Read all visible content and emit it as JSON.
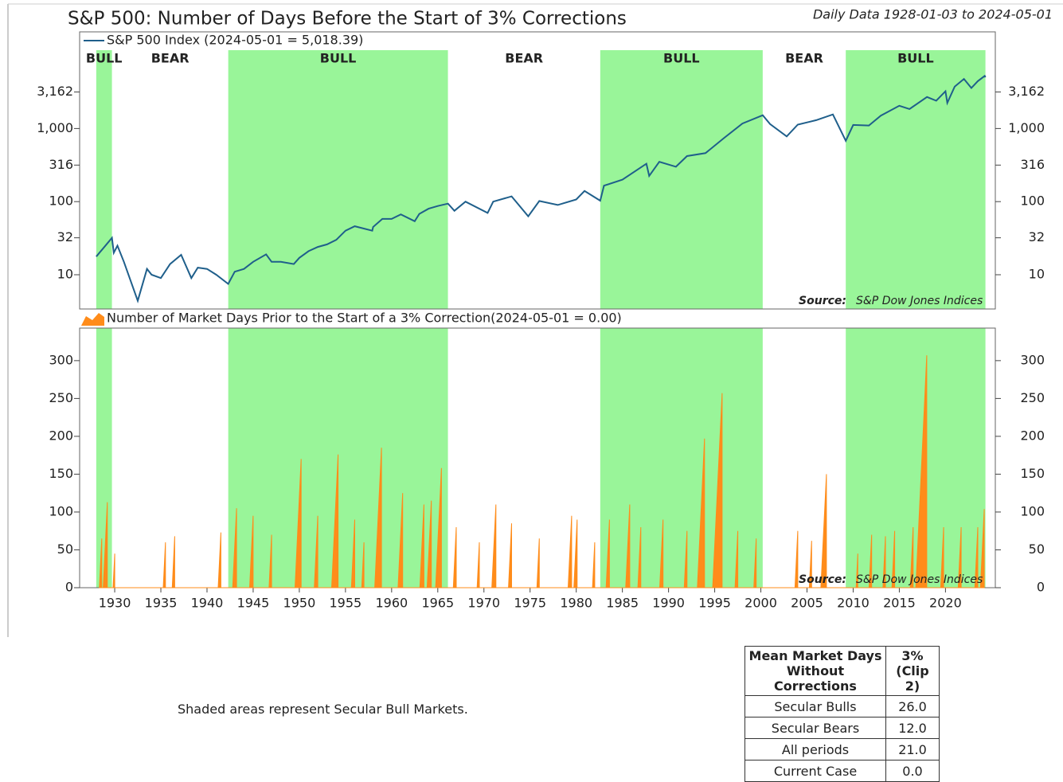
{
  "title": "S&P 500: Number of Days Before the Start of 3% Corrections",
  "subtitle": "Daily Data 1928-01-03 to 2024-05-01",
  "chart_data": [
    {
      "type": "line",
      "log": true,
      "xlim": [
        1926.2,
        2025.4
      ],
      "ylim": [
        3.4,
        21000
      ],
      "yticks": [
        10,
        32,
        100,
        316,
        {
          "value": 1000,
          "label": "1,000"
        },
        {
          "value": 3162,
          "label": "3,162"
        }
      ],
      "source_label": "Source:",
      "source": "S&P Dow Jones Indices",
      "regions": [
        {
          "label": "BULL",
          "start": 1928.0,
          "end": 1929.7,
          "color": "#99f599"
        },
        {
          "label": "BEAR",
          "start": 1929.7,
          "end": 1942.3,
          "color": null
        },
        {
          "label": "BULL",
          "start": 1942.3,
          "end": 1966.1,
          "color": "#99f599"
        },
        {
          "label": "BEAR",
          "start": 1966.1,
          "end": 1982.6,
          "color": null
        },
        {
          "label": "BULL",
          "start": 1982.6,
          "end": 2000.2,
          "color": "#99f599"
        },
        {
          "label": "BEAR",
          "start": 2000.2,
          "end": 2009.2,
          "color": null
        },
        {
          "label": "BULL",
          "start": 2009.2,
          "end": 2024.33,
          "color": "#99f599"
        }
      ],
      "x": [
        1928,
        1929.7,
        1929.9,
        1930.3,
        1931,
        1932.5,
        1933.5,
        1934,
        1935,
        1936,
        1937.2,
        1938.3,
        1939,
        1940,
        1941,
        1942.3,
        1943,
        1944,
        1945,
        1946.4,
        1947,
        1948,
        1949.4,
        1950,
        1951,
        1952,
        1953,
        1954,
        1955,
        1956,
        1957.9,
        1958,
        1959,
        1960,
        1961,
        1962.5,
        1963,
        1964,
        1965,
        1966.1,
        1966.8,
        1968,
        1970.4,
        1971,
        1973,
        1974.8,
        1976,
        1978,
        1980,
        1980.9,
        1982.6,
        1983,
        1985,
        1987.6,
        1987.9,
        1989,
        1990.8,
        1992,
        1994,
        1996,
        1998,
        2000.2,
        2001,
        2002.8,
        2004,
        2006,
        2007.8,
        2009.2,
        2010,
        2011.7,
        2013,
        2015,
        2016.1,
        2018,
        2019,
        2020,
        2020.2,
        2021,
        2022,
        2022.8,
        2023.5,
        2024.25,
        2024.33
      ],
      "series": [
        {
          "name": "S&P 500 Index (2024-05-01 = 5,018.39)",
          "color": "#1f5f8b",
          "values": [
            17.7,
            31.9,
            20,
            25,
            15,
            4.4,
            12,
            10,
            9,
            14,
            18.7,
            9,
            12.5,
            12,
            10,
            7.5,
            11,
            12,
            15,
            19,
            15,
            15,
            14,
            17,
            21,
            24,
            26,
            30,
            40,
            46,
            40,
            45,
            58,
            58,
            67,
            54,
            68,
            80,
            87,
            94,
            75,
            100,
            70,
            100,
            118,
            63,
            102,
            90,
            107,
            140,
            103,
            165,
            200,
            330,
            225,
            350,
            300,
            420,
            460,
            740,
            1170,
            1520,
            1150,
            780,
            1130,
            1300,
            1560,
            680,
            1120,
            1100,
            1500,
            2050,
            1850,
            2700,
            2400,
            3230,
            2240,
            3750,
            4770,
            3580,
            4450,
            5250,
            5018.39
          ]
        }
      ]
    },
    {
      "type": "area",
      "log": false,
      "xlim": [
        1926.2,
        2025.4
      ],
      "ylim": [
        0,
        343
      ],
      "yticks": [
        0,
        50,
        100,
        150,
        200,
        250,
        300
      ],
      "xticks": [
        1930,
        1935,
        1940,
        1945,
        1950,
        1955,
        1960,
        1965,
        1970,
        1975,
        1980,
        1985,
        1990,
        1995,
        2000,
        2005,
        2010,
        2015,
        2020
      ],
      "source_label": "Source:",
      "source": "S&P Dow Jones Indices",
      "x": [
        1928.34,
        1928.6,
        1928.6,
        1928.75,
        1929.2,
        1929.2,
        1929.82,
        1930,
        1930,
        1935.26,
        1935.5,
        1935.5,
        1936.23,
        1936.5,
        1936.5,
        1941.21,
        1941.5,
        1941.5,
        1942.78,
        1943.2,
        1943.2,
        1944.62,
        1945,
        1945,
        1946.72,
        1947,
        1947,
        1949.53,
        1950.2,
        1950.2,
        1951.62,
        1952,
        1952,
        1953.5,
        1954.2,
        1954.2,
        1955.64,
        1956,
        1956,
        1956.76,
        1957,
        1957,
        1958.17,
        1958.9,
        1958.9,
        1960.7,
        1961.2,
        1961.2,
        1963.06,
        1963.5,
        1963.5,
        1963.84,
        1964.3,
        1964.3,
        1964.77,
        1965.4,
        1965.4,
        1966.68,
        1967,
        1967,
        1969.26,
        1969.5,
        1969.5,
        1970.86,
        1971.3,
        1971.3,
        1972.66,
        1973,
        1973,
        1975.74,
        1976,
        1976,
        1979.12,
        1979.5,
        1979.5,
        1979.74,
        1980.1,
        1980.1,
        1981.76,
        1982,
        1982,
        1983.24,
        1983.6,
        1983.6,
        1985.36,
        1985.8,
        1985.8,
        1986.68,
        1987,
        1987,
        1989.04,
        1989.4,
        1989.4,
        1991.7,
        1992,
        1992,
        1993.12,
        1993.9,
        1993.9,
        1994.78,
        1995.8,
        1995.8,
        1997.2,
        1997.5,
        1997.5,
        1999.24,
        1999.5,
        1999.5,
        2003.7,
        2004,
        2004,
        2005.25,
        2005.5,
        2005.5,
        2006.5,
        2007.1,
        2007.1,
        2010.32,
        2010.5,
        2010.5,
        2011.72,
        2012,
        2012,
        2013.23,
        2013.5,
        2013.5,
        2014.2,
        2014.5,
        2014.5,
        2016.18,
        2016.5,
        2016.5,
        2016.78,
        2017.97,
        2017.97,
        2019.48,
        2019.8,
        2019.8,
        2021.38,
        2021.7,
        2021.7,
        2023.18,
        2023.5,
        2023.5,
        2023.79,
        2024.2,
        2024.2
      ],
      "series": [
        {
          "name": "Number of Market Days Prior to the Start of a 3% Correction(2024-05-01 = 0.00)",
          "color": "#ff8c1a",
          "values": [
            0,
            65,
            0,
            0,
            113,
            0,
            0,
            45,
            0,
            0,
            60,
            0,
            0,
            68,
            0,
            0,
            73,
            0,
            0,
            105,
            0,
            0,
            95,
            0,
            0,
            70,
            0,
            0,
            170,
            0,
            0,
            95,
            0,
            0,
            176,
            0,
            0,
            90,
            0,
            0,
            60,
            0,
            0,
            185,
            0,
            0,
            125,
            0,
            0,
            110,
            0,
            0,
            115,
            0,
            0,
            158,
            0,
            0,
            80,
            0,
            0,
            60,
            0,
            0,
            110,
            0,
            0,
            85,
            0,
            0,
            65,
            0,
            0,
            95,
            0,
            0,
            90,
            0,
            0,
            60,
            0,
            0,
            90,
            0,
            0,
            110,
            0,
            0,
            80,
            0,
            0,
            90,
            0,
            0,
            75,
            0,
            0,
            197,
            0,
            0,
            257,
            0,
            0,
            75,
            0,
            0,
            65,
            0,
            0,
            75,
            0,
            0,
            62,
            0,
            0,
            150,
            0,
            0,
            45,
            0,
            0,
            70,
            0,
            0,
            68,
            0,
            0,
            75,
            0,
            0,
            80,
            0,
            0,
            307,
            0,
            0,
            80,
            0,
            0,
            80,
            0,
            0,
            80,
            0,
            0,
            104,
            0
          ]
        }
      ]
    }
  ],
  "note": "Shaded areas represent Secular Bull Markets.",
  "table": {
    "header": [
      "Mean Market Days\nWithout Corrections",
      "3%\n(Clip 2)"
    ],
    "rows": [
      [
        "Secular Bulls",
        "26.0"
      ],
      [
        "Secular Bears",
        "12.0"
      ],
      [
        "All periods",
        "21.0"
      ],
      [
        "Current Case",
        "0.0"
      ]
    ]
  }
}
